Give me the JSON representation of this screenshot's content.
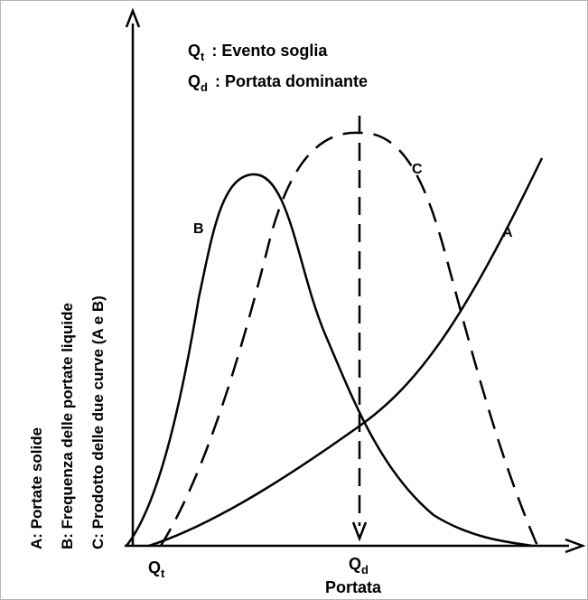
{
  "legend": {
    "qt_symbol": "Q",
    "qt_sub": "t",
    "qt_text": ": Evento soglia",
    "qd_symbol": "Q",
    "qd_sub": "d",
    "qd_text": ": Portata dominante"
  },
  "curves": {
    "a": "A",
    "b": "B",
    "c": "C"
  },
  "y_axis": {
    "line1": "A: Portate solide",
    "line2": "B: Frequenza delle portate liquide",
    "line3": "C: Prodotto delle due curve (A e B)"
  },
  "x_axis": {
    "label": "Portata",
    "tick_qt_symbol": "Q",
    "tick_qt_sub": "t",
    "tick_qd_symbol": "Q",
    "tick_qd_sub": "d"
  }
}
